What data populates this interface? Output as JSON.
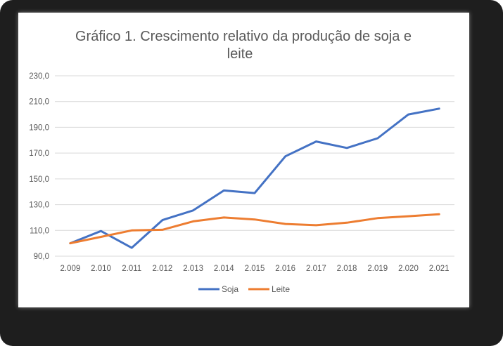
{
  "chart_data": {
    "type": "line",
    "title_lines": [
      "Gráfico 1. Crescimento relativo da produção de soja e",
      "leite"
    ],
    "categories": [
      "2.009",
      "2.010",
      "2.011",
      "2.012",
      "2.013",
      "2.014",
      "2.015",
      "2.016",
      "2.017",
      "2.018",
      "2.019",
      "2.020",
      "2.021"
    ],
    "ylim": [
      90,
      230
    ],
    "yticks": [
      90,
      110,
      130,
      150,
      170,
      190,
      210,
      230
    ],
    "ytick_labels": [
      "90,0",
      "110,0",
      "130,0",
      "150,0",
      "170,0",
      "190,0",
      "210,0",
      "230,0"
    ],
    "grid": true,
    "legend_position": "bottom",
    "series": [
      {
        "name": "Soja",
        "color": "#4472c4",
        "values": [
          100,
          109.5,
          96.5,
          118,
          125.5,
          141,
          139,
          167.5,
          179,
          174,
          181.5,
          200,
          204.5
        ]
      },
      {
        "name": "Leite",
        "color": "#ed7d31",
        "values": [
          100,
          105,
          110,
          110.5,
          117,
          120,
          118.5,
          115,
          114,
          116,
          119.5,
          121,
          122.5
        ]
      }
    ]
  }
}
